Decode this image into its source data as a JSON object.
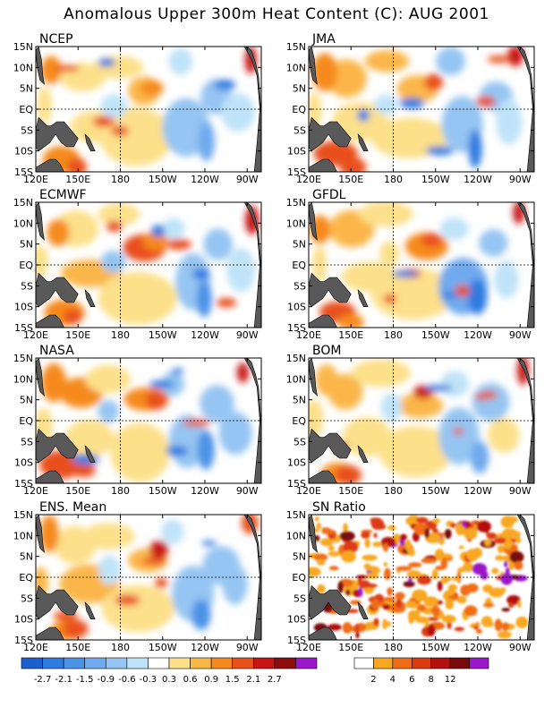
{
  "title": "Anomalous Upper 300m Heat Content (C): AUG 2001",
  "lat_labels": [
    "15N",
    "10N",
    "5N",
    "EQ",
    "5S",
    "10S",
    "15S"
  ],
  "lon_labels": [
    "120E",
    "150E",
    "180",
    "150W",
    "120W",
    "90W"
  ],
  "panels": [
    {
      "name": "NCEP",
      "kind": "anom"
    },
    {
      "name": "JMA",
      "kind": "anom"
    },
    {
      "name": "ECMWF",
      "kind": "anom"
    },
    {
      "name": "GFDL",
      "kind": "anom"
    },
    {
      "name": "NASA",
      "kind": "anom"
    },
    {
      "name": "BOM",
      "kind": "anom"
    },
    {
      "name": "ENS. Mean",
      "kind": "anom"
    },
    {
      "name": "SN Ratio",
      "kind": "snr"
    }
  ],
  "colorbar_anom": {
    "labels": [
      "-2.7",
      "-2.1",
      "-1.5",
      "-0.9",
      "-0.6",
      "-0.3",
      "0.3",
      "0.6",
      "0.9",
      "1.5",
      "2.1",
      "2.7"
    ],
    "colors": [
      "#1e5fd0",
      "#2f7be0",
      "#4c92e6",
      "#6faaee",
      "#95c5f2",
      "#bfe3f8",
      "#ffffff",
      "#fde08a",
      "#fbb648",
      "#f68a1e",
      "#e8501c",
      "#c81616",
      "#8e0d0d",
      "#9a18c8"
    ]
  },
  "colorbar_snr": {
    "labels": [
      "2",
      "4",
      "6",
      "8",
      "12"
    ],
    "colors": [
      "#ffffff",
      "#f7a722",
      "#f06c18",
      "#dc3a12",
      "#b31010",
      "#7a0a0a",
      "#9a18c8"
    ]
  },
  "land_color": "#595959"
}
